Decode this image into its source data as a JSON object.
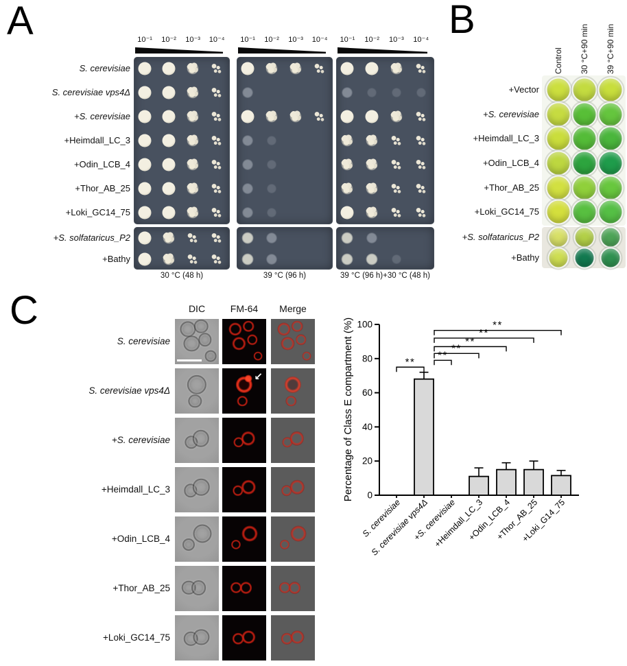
{
  "panelA": {
    "label": "A",
    "dilutions": [
      "10⁻¹",
      "10⁻²",
      "10⁻³",
      "10⁻⁴"
    ],
    "conditions": [
      "30 °C (48 h)",
      "39 °C (96 h)",
      "39 °C (96 h)+30 °C (48 h)"
    ],
    "main_rows": [
      {
        "label": "S. cerevisiae",
        "italic": true
      },
      {
        "label": "S. cerevisiae vps4Δ",
        "italic": true
      },
      {
        "label": "+S. cerevisiae",
        "italic": true
      },
      {
        "label": "+Heimdall_LC_3",
        "italic": false
      },
      {
        "label": "+Odin_LCB_4",
        "italic": false
      },
      {
        "label": "+Thor_AB_25",
        "italic": false
      },
      {
        "label": "+Loki_GC14_75",
        "italic": false
      }
    ],
    "extra_rows": [
      {
        "label": "+S. solfataricus_P2",
        "italic": true
      },
      {
        "label": "+Bathy",
        "italic": false
      }
    ],
    "plates_main": [
      [
        "3321",
        "3321",
        "3321",
        "3321",
        "3321",
        "3321",
        "3321"
      ],
      [
        "3221",
        "F000",
        "3221",
        "Ff00",
        "Ff00",
        "Ff00",
        "Ff00"
      ],
      [
        "3321",
        "Ffff",
        "3321",
        "2211",
        "2211",
        "2211",
        "3211"
      ]
    ],
    "plates_extra": [
      [
        "3211",
        "3211"
      ],
      [
        "mF00",
        "mF00"
      ],
      [
        "mF00",
        "mmf0"
      ]
    ]
  },
  "panelB": {
    "label": "B",
    "col_headers": [
      "Control",
      "30 °C+90 min",
      "39 °C+90 min"
    ],
    "main_rows": [
      {
        "label": "+Vector",
        "italic": false,
        "wells": [
          "#ccdf3e",
          "#c3db40",
          "#c8de3c"
        ]
      },
      {
        "label": "+S. cerevisiae",
        "italic": true,
        "wells": [
          "#c6db41",
          "#58bf37",
          "#65c53e"
        ]
      },
      {
        "label": "+Heimdall_LC_3",
        "italic": false,
        "wells": [
          "#cadd3c",
          "#54bc38",
          "#4ab63c"
        ]
      },
      {
        "label": "+Odin_LCB_4",
        "italic": false,
        "wells": [
          "#bdd740",
          "#2da43e",
          "#1f9c4b"
        ]
      },
      {
        "label": "+Thor_AB_25",
        "italic": false,
        "wells": [
          "#d2e041",
          "#90d03b",
          "#68c73e"
        ]
      },
      {
        "label": "+Loki_GC14_75",
        "italic": false,
        "wells": [
          "#d4df3d",
          "#58bf40",
          "#55bf45"
        ]
      }
    ],
    "extra_rows": [
      {
        "label": "+S. solfataricus_P2",
        "italic": true,
        "wells": [
          "#d8e067",
          "#b3d048",
          "#4da457"
        ]
      },
      {
        "label": "+Bathy",
        "italic": false,
        "wells": [
          "#cede52",
          "#127a50",
          "#2f9150"
        ]
      }
    ]
  },
  "panelC": {
    "label": "C",
    "col_headers": [
      "DIC",
      "FM-64",
      "Merge"
    ],
    "arrow_glyph": "↙",
    "rows": [
      {
        "label": "S. cerevisiae",
        "italic": true,
        "scalebar": true,
        "cells": [
          [
            30,
            22,
            15
          ],
          [
            60,
            16,
            13
          ],
          [
            38,
            54,
            15
          ],
          [
            68,
            46,
            12
          ],
          [
            82,
            82,
            10
          ]
        ]
      },
      {
        "label": "S. cerevisiae vps4Δ",
        "italic": true,
        "arrow": true,
        "bright": true,
        "cells": [
          [
            50,
            36,
            19
          ],
          [
            46,
            72,
            12
          ]
        ]
      },
      {
        "label": "+S. cerevisiae",
        "italic": true,
        "cells": [
          [
            37,
            54,
            12
          ],
          [
            59,
            46,
            16
          ]
        ]
      },
      {
        "label": "+Heimdall_LC_3",
        "italic": false,
        "cells": [
          [
            36,
            52,
            12
          ],
          [
            60,
            44,
            16
          ]
        ]
      },
      {
        "label": "+Odin_LCB_4",
        "italic": false,
        "cells": [
          [
            62,
            38,
            18
          ],
          [
            31,
            62,
            11
          ]
        ]
      },
      {
        "label": "+Thor_AB_25",
        "italic": false,
        "cells": [
          [
            32,
            48,
            13
          ],
          [
            54,
            48,
            14
          ]
        ]
      },
      {
        "label": "+Loki_GC14_75",
        "italic": false,
        "cells": [
          [
            36,
            52,
            13
          ],
          [
            60,
            48,
            15
          ]
        ]
      }
    ]
  },
  "chart_data": {
    "type": "bar",
    "title": "",
    "ylabel": "Percentage of Class E compartment (%)",
    "xlabel": "",
    "ylim": [
      0,
      100
    ],
    "yticks": [
      0,
      20,
      40,
      60,
      80,
      100
    ],
    "grid": false,
    "legend": "none",
    "categories": [
      "S. cerevisiae",
      "S. cerevisiae vps4Δ",
      "+S. cerevisiae",
      "+Heimdall_LC_3",
      "+Odin_LCB_4",
      "+Thor_AB_25",
      "+Loki_G14_75"
    ],
    "italic_flags": [
      true,
      true,
      true,
      false,
      false,
      false,
      false
    ],
    "values": [
      0,
      68,
      0,
      11,
      15,
      15,
      11.5
    ],
    "errors": [
      0,
      4,
      0,
      5,
      4,
      5,
      3
    ],
    "bar_color": "#d9d9d9",
    "significance": [
      {
        "from": 0,
        "to": 1,
        "label": "**",
        "y": 75
      },
      {
        "from": 1,
        "to": 2,
        "label": "**",
        "y": 79
      },
      {
        "from": 1,
        "to": 3,
        "label": "**",
        "y": 83
      },
      {
        "from": 1,
        "to": 4,
        "label": "**",
        "y": 87
      },
      {
        "from": 1,
        "to": 5,
        "label": "**",
        "y": 92
      },
      {
        "from": 1,
        "to": 6,
        "label": "**",
        "y": 96.5
      }
    ]
  }
}
